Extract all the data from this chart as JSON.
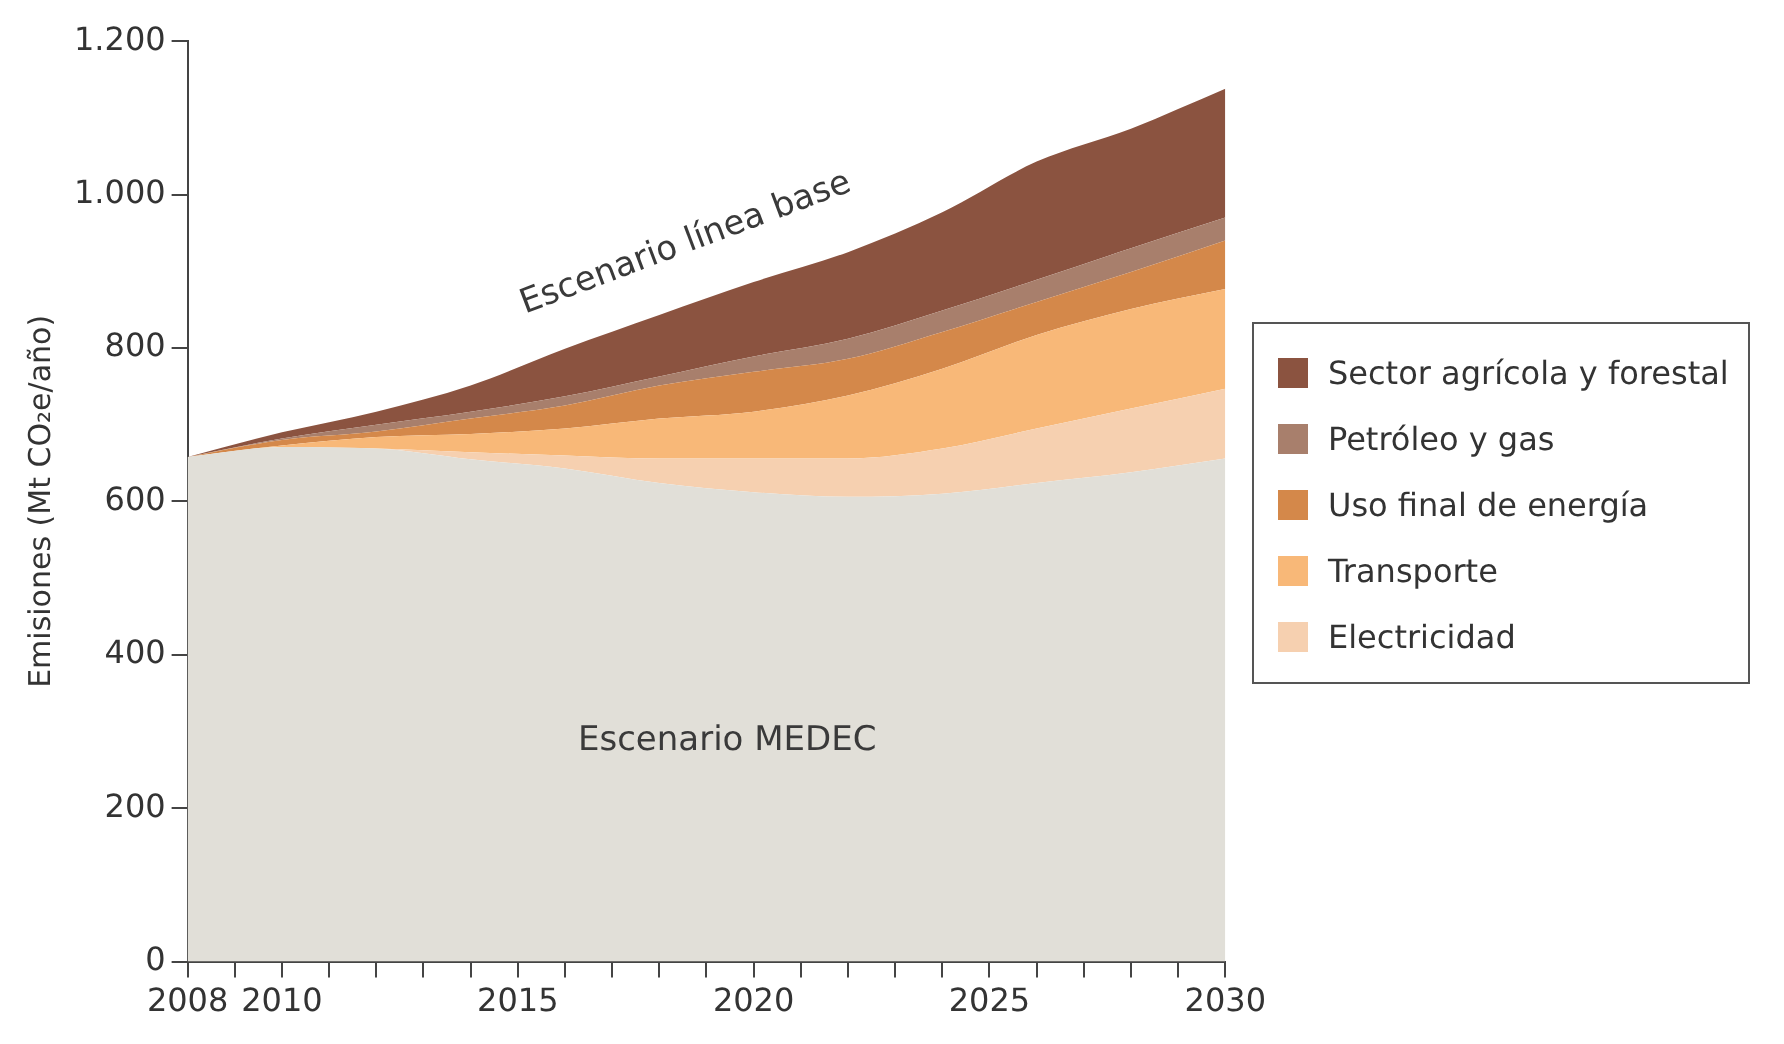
{
  "chart_data": {
    "type": "area",
    "stacked": true,
    "ylabel": "Emisiones (Mt CO₂e/año)",
    "x": [
      2008,
      2010,
      2012,
      2014,
      2016,
      2018,
      2020,
      2022,
      2024,
      2026,
      2028,
      2030
    ],
    "xlim": [
      2008,
      2030
    ],
    "xticks": [
      2008,
      {
        "value": 2009,
        "label": null
      },
      2010,
      {
        "value": 2011,
        "label": null
      },
      {
        "value": 2012,
        "label": null
      },
      {
        "value": 2013,
        "label": null
      },
      {
        "value": 2014,
        "label": null
      },
      2015,
      {
        "value": 2016,
        "label": null
      },
      {
        "value": 2017,
        "label": null
      },
      {
        "value": 2018,
        "label": null
      },
      {
        "value": 2019,
        "label": null
      },
      2020,
      {
        "value": 2021,
        "label": null
      },
      {
        "value": 2022,
        "label": null
      },
      {
        "value": 2023,
        "label": null
      },
      {
        "value": 2024,
        "label": null
      },
      2025,
      {
        "value": 2026,
        "label": null
      },
      {
        "value": 2027,
        "label": null
      },
      {
        "value": 2028,
        "label": null
      },
      {
        "value": 2029,
        "label": null
      },
      2030
    ],
    "ylim": [
      0,
      1200
    ],
    "yticks": [
      0,
      200,
      400,
      600,
      800,
      {
        "value": 1000,
        "label": "1.000"
      },
      {
        "value": 1200,
        "label": "1.200"
      }
    ],
    "series": [
      {
        "color": "#e1dfd8",
        "values": [
          658,
          671,
          669,
          655,
          643,
          624,
          612,
          606,
          610,
          624,
          638,
          656
        ]
      },
      {
        "name": "Electricidad",
        "color": "#f6d0b0",
        "values": [
          0,
          0,
          0,
          9,
          17,
          32,
          44,
          50,
          59,
          71,
          83,
          91
        ]
      },
      {
        "name": "Transporte",
        "color": "#f8b878",
        "values": [
          0,
          2,
          15,
          24,
          35,
          52,
          61,
          82,
          104,
          122,
          130,
          130
        ]
      },
      {
        "name": "Uso final de energía",
        "color": "#d4884a",
        "values": [
          0,
          7,
          7,
          20,
          30,
          43,
          52,
          48,
          48,
          43,
          48,
          63
        ]
      },
      {
        "name": "Petróleo y gas",
        "color": "#a87f6c",
        "values": [
          0,
          2,
          9,
          9,
          12,
          12,
          20,
          26,
          28,
          29,
          31,
          30
        ]
      },
      {
        "name": "Sector agrícola y forestal",
        "color": "#8b5340",
        "values": [
          0,
          8,
          17,
          34,
          62,
          80,
          97,
          113,
          128,
          154,
          156,
          168
        ]
      }
    ],
    "annotations": [
      "Escenario línea base",
      "Escenario MEDEC"
    ],
    "legend": "right",
    "grid": false
  }
}
